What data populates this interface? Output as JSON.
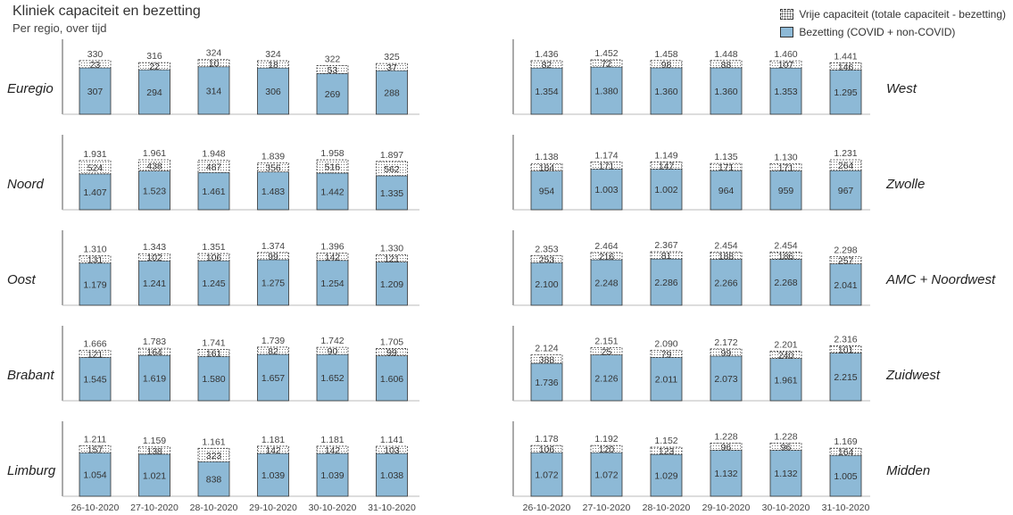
{
  "title": "Kliniek capaciteit en bezetting",
  "subtitle": "Per regio, over tijd",
  "legend": {
    "free": "Vrije capaciteit (totale capaciteit - bezetting)",
    "occupied": "Bezetting (COVID + non-COVID)"
  },
  "colors": {
    "occupied": "#8db9d6",
    "free_border": "#333333"
  },
  "chart_data": {
    "type": "bar",
    "stacked": true,
    "categories": [
      "26-10-2020",
      "27-10-2020",
      "28-10-2020",
      "29-10-2020",
      "30-10-2020",
      "31-10-2020"
    ],
    "panels": [
      {
        "region": "Euregio",
        "totals": [
          "330",
          "316",
          "324",
          "324",
          "322",
          "325"
        ],
        "occupied": [
          307,
          294,
          314,
          306,
          269,
          288
        ],
        "free": [
          23,
          22,
          10,
          18,
          53,
          37
        ]
      },
      {
        "region": "Noord",
        "totals": [
          "1.931",
          "1.961",
          "1.948",
          "1.839",
          "1.958",
          "1.897"
        ],
        "occupied": [
          1407,
          1523,
          1461,
          1483,
          1442,
          1335
        ],
        "free": [
          524,
          438,
          487,
          356,
          516,
          562
        ]
      },
      {
        "region": "Oost",
        "totals": [
          "1.310",
          "1.343",
          "1.351",
          "1.374",
          "1.396",
          "1.330"
        ],
        "occupied": [
          1179,
          1241,
          1245,
          1275,
          1254,
          1209
        ],
        "free": [
          131,
          102,
          106,
          99,
          142,
          121
        ]
      },
      {
        "region": "Brabant",
        "totals": [
          "1.666",
          "1.783",
          "1.741",
          "1.739",
          "1.742",
          "1.705"
        ],
        "occupied": [
          1545,
          1619,
          1580,
          1657,
          1652,
          1606
        ],
        "free": [
          121,
          164,
          161,
          82,
          90,
          99
        ]
      },
      {
        "region": "Limburg",
        "totals": [
          "1.211",
          "1.159",
          "1.161",
          "1.181",
          "1.181",
          "1.141"
        ],
        "occupied": [
          1054,
          1021,
          838,
          1039,
          1039,
          1038
        ],
        "free": [
          157,
          138,
          323,
          142,
          142,
          103
        ]
      },
      {
        "region": "West",
        "totals": [
          "1.436",
          "1.452",
          "1.458",
          "1.448",
          "1.460",
          "1.441"
        ],
        "occupied": [
          1354,
          1380,
          1360,
          1360,
          1353,
          1295
        ],
        "free": [
          82,
          72,
          98,
          88,
          107,
          146
        ]
      },
      {
        "region": "Zwolle",
        "totals": [
          "1.138",
          "1.174",
          "1.149",
          "1.135",
          "1.130",
          "1.231"
        ],
        "occupied": [
          954,
          1003,
          1002,
          964,
          959,
          967
        ],
        "free": [
          184,
          171,
          147,
          171,
          171,
          264
        ]
      },
      {
        "region": "AMC + Noordwest",
        "totals": [
          "2.353",
          "2.464",
          "2.367",
          "2.454",
          "2.454",
          "2.298"
        ],
        "occupied": [
          2100,
          2248,
          2286,
          2266,
          2268,
          2041
        ],
        "free": [
          253,
          216,
          81,
          188,
          186,
          257
        ]
      },
      {
        "region": "Zuidwest",
        "totals": [
          "2.124",
          "2.151",
          "2.090",
          "2.172",
          "2.201",
          "2.316"
        ],
        "occupied": [
          1736,
          2126,
          2011,
          2073,
          1961,
          2215
        ],
        "free": [
          388,
          25,
          79,
          99,
          240,
          101
        ]
      },
      {
        "region": "Midden",
        "totals": [
          "1.178",
          "1.192",
          "1.152",
          "1.228",
          "1.228",
          "1.169"
        ],
        "occupied": [
          1072,
          1072,
          1029,
          1132,
          1132,
          1005
        ],
        "free": [
          106,
          120,
          123,
          96,
          96,
          164
        ]
      }
    ]
  }
}
